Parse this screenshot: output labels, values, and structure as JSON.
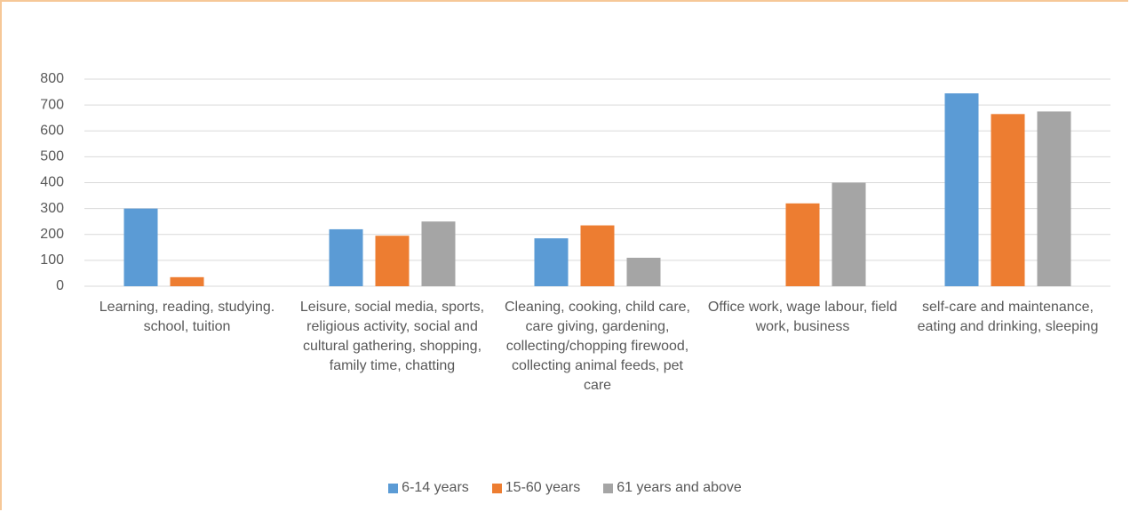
{
  "chart_data": {
    "type": "bar",
    "categories": [
      "Learning, reading, studying. school, tuition",
      "Leisure, social media, sports, religious activity, social and cultural gathering, shopping, family time, chatting",
      "Cleaning, cooking, child care, care giving, gardening, collecting/chopping firewood, collecting animal feeds, pet care",
      "Office work, wage labour, field work, business",
      "self-care and maintenance, eating and drinking, sleeping"
    ],
    "series": [
      {
        "name": "6-14 years",
        "color": "#5b9bd5",
        "values": [
          300,
          220,
          185,
          null,
          745
        ]
      },
      {
        "name": "15-60 years",
        "color": "#ed7d31",
        "values": [
          35,
          195,
          235,
          320,
          665
        ]
      },
      {
        "name": "61 years and above",
        "color": "#a5a5a5",
        "values": [
          null,
          250,
          110,
          400,
          675
        ]
      }
    ],
    "ylim": [
      0,
      800
    ],
    "yticks": [
      0,
      100,
      200,
      300,
      400,
      500,
      600,
      700,
      800
    ],
    "grid": true,
    "legend": "bottom"
  }
}
